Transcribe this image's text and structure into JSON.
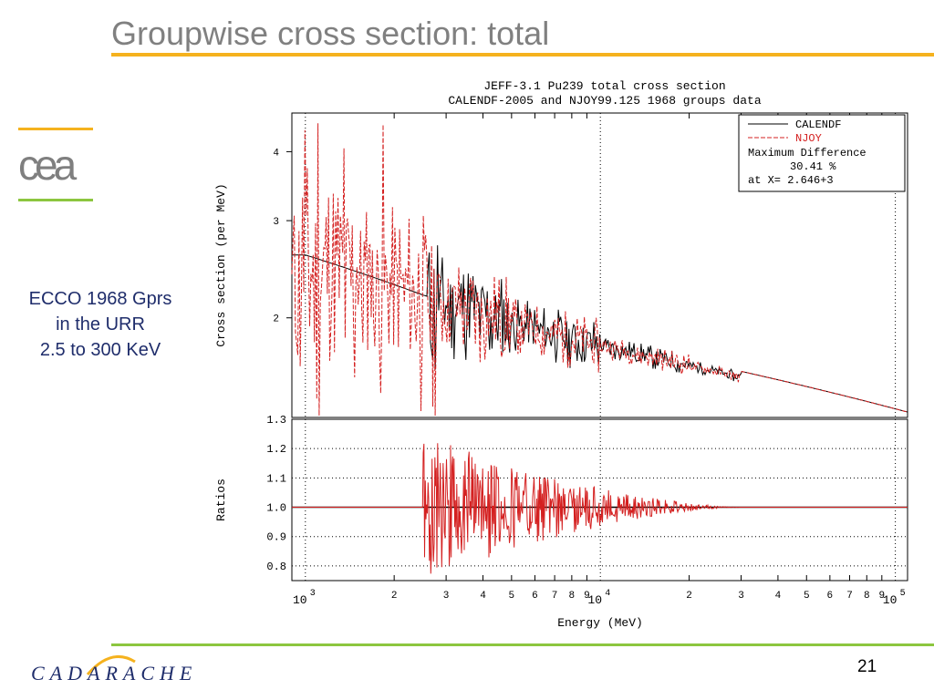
{
  "slide": {
    "title": "Groupwise cross section: total",
    "page_number": "21",
    "brand": "CADARACHE",
    "logo_text": "cea",
    "side_note": [
      "ECCO 1968 Gprs",
      "in the URR",
      "2.5 to 300 KeV"
    ]
  },
  "colors": {
    "accent_orange": "#f5b21e",
    "accent_green": "#8cc63f",
    "title_gray": "#808080",
    "navy": "#1f2d6b",
    "calendf": "#000000",
    "njoy": "#d42020"
  },
  "chart_data": [
    {
      "type": "line",
      "title": "JEFF-3.1 Pu239 total cross section",
      "subtitle": "CALENDF-2005 and NJOY99.125 1968 groups data",
      "xlabel": "",
      "ylabel": "Cross section (per MeV)",
      "x_scale": "log",
      "y_scale": "log",
      "xlim": [
        900,
        110000
      ],
      "ylim": [
        1.32,
        4.7
      ],
      "yticks": [
        2,
        3,
        4
      ],
      "xticks_minor_labels": [
        "2",
        "3",
        "4",
        "5",
        "6",
        "7",
        "8",
        "9",
        "2",
        "3",
        "4",
        "5",
        "6",
        "7",
        "8",
        "9"
      ],
      "grid": "vertical dotted at 1000, 10000, 100000",
      "legend": {
        "position": "top-right",
        "entries": [
          {
            "label": "CALENDF",
            "style": "solid",
            "color": "#000000"
          },
          {
            "label": "NJOY",
            "style": "dashed",
            "color": "#d42020"
          }
        ],
        "notes": [
          "Maximum Difference",
          "30.41 %",
          "at X= 2.646+3"
        ]
      },
      "series": [
        {
          "name": "CALENDF",
          "trend_x": [
            1000,
            2500,
            5000,
            10000,
            20000,
            30000,
            30000,
            110000
          ],
          "trend_y": [
            2.6,
            2.2,
            1.95,
            1.78,
            1.64,
            1.56,
            1.6,
            1.35
          ],
          "noise_start": 2600,
          "noise_end": 30000
        },
        {
          "name": "NJOY",
          "trend_x": [
            900,
            1000,
            1500,
            2500,
            5000,
            10000,
            20000,
            30000,
            30000,
            110000
          ],
          "trend_y": [
            2.4,
            2.5,
            2.3,
            2.2,
            1.95,
            1.78,
            1.64,
            1.56,
            1.6,
            1.35
          ],
          "noise_start": 900,
          "noise_end": 30000
        }
      ]
    },
    {
      "type": "line",
      "title": "",
      "xlabel": "Energy (MeV)",
      "ylabel": "Ratios",
      "x_scale": "log",
      "xlim": [
        900,
        110000
      ],
      "ylim": [
        0.75,
        1.3
      ],
      "yticks": [
        0.8,
        0.9,
        1.0,
        1.1,
        1.2,
        1.3
      ],
      "ytick_labels": [
        "0.8",
        "0.9",
        "1.0",
        "1.1",
        "1.2",
        "1.3"
      ],
      "xtick_major_labels": [
        "10",
        "10",
        "10"
      ],
      "xtick_major_exponents": [
        "3",
        "4",
        "5"
      ],
      "xtick_major_values": [
        1000,
        10000,
        100000
      ],
      "xtick_minor_labels": [
        "2",
        "3",
        "4",
        "5",
        "6",
        "7",
        "8",
        "9",
        "2",
        "3",
        "4",
        "5",
        "6",
        "7",
        "8",
        "9"
      ],
      "grid": "horizontal dotted at each tick; vertical dotted at decades",
      "series": [
        {
          "name": "CALENDF",
          "constant": 1.0
        },
        {
          "name": "NJOY",
          "osc_start": 2500,
          "osc_end": 30000,
          "peak_amplitude": 0.25,
          "flat_value": 1.0
        }
      ]
    }
  ]
}
